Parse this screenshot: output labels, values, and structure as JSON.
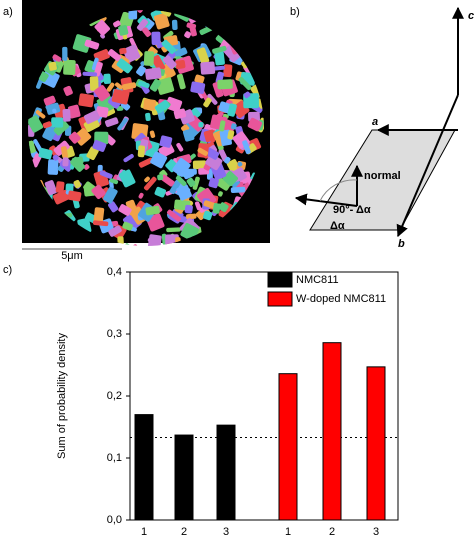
{
  "panels": {
    "a": {
      "label": "a)",
      "scale_bar": "5μm"
    },
    "b": {
      "label": "b)",
      "axes": [
        "a",
        "b",
        "c"
      ],
      "normal": "normal",
      "angle_complement": "90°- Δα",
      "angle": "Δα"
    },
    "c": {
      "label": "c)"
    }
  },
  "chart_data": {
    "type": "bar",
    "y_label": "Sum of probability density",
    "categories": [
      "1",
      "2",
      "3",
      "1",
      "2",
      "3"
    ],
    "series": [
      {
        "name": "NMC811",
        "color": "#000000",
        "values": [
          0.17,
          0.137,
          0.153,
          null,
          null,
          null
        ]
      },
      {
        "name": "W-doped NMC811",
        "color": "#ff0000",
        "values": [
          null,
          null,
          null,
          0.236,
          0.286,
          0.247
        ]
      }
    ],
    "ylim": [
      0,
      0.4
    ],
    "yticks": [
      {
        "value": 0,
        "label": "0,0"
      },
      {
        "value": 0.1,
        "label": "0,1"
      },
      {
        "value": 0.2,
        "label": "0,2"
      },
      {
        "value": 0.3,
        "label": "0,3"
      },
      {
        "value": 0.4,
        "label": "0,4"
      }
    ],
    "reference_line": 0.133,
    "legend": "upper right"
  }
}
